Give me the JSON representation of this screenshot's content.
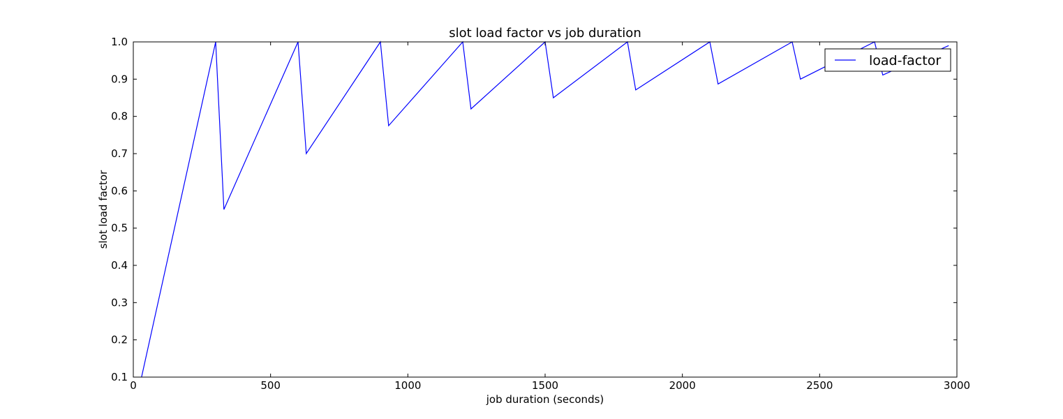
{
  "chart_data": {
    "type": "line",
    "title": "slot load factor vs job duration",
    "xlabel": "job duration (seconds)",
    "ylabel": "slot load factor",
    "xlim": [
      0,
      3000
    ],
    "ylim": [
      0.1,
      1.0
    ],
    "x_ticks": [
      0,
      500,
      1000,
      1500,
      2000,
      2500,
      3000
    ],
    "x_tick_labels": [
      "0",
      "500",
      "1000",
      "1500",
      "2000",
      "2500",
      "3000"
    ],
    "y_ticks": [
      0.1,
      0.2,
      0.3,
      0.4,
      0.5,
      0.6,
      0.7,
      0.8,
      0.9,
      1.0
    ],
    "y_tick_labels": [
      "0.1",
      "0.2",
      "0.3",
      "0.4",
      "0.5",
      "0.6",
      "0.7",
      "0.8",
      "0.9",
      "1.0"
    ],
    "grid": false,
    "legend_position": "top-right",
    "series": [
      {
        "name": "load-factor",
        "color": "#0000ff",
        "x": [
          30,
          300,
          330,
          600,
          630,
          900,
          930,
          1200,
          1230,
          1500,
          1530,
          1800,
          1830,
          2100,
          2130,
          2400,
          2430,
          2700,
          2730,
          2970
        ],
        "y": [
          0.1,
          1.0,
          0.55,
          1.0,
          0.7,
          1.0,
          0.775,
          1.0,
          0.82,
          1.0,
          0.85,
          1.0,
          0.871,
          1.0,
          0.887,
          1.0,
          0.9,
          1.0,
          0.911,
          0.99
        ]
      }
    ]
  }
}
